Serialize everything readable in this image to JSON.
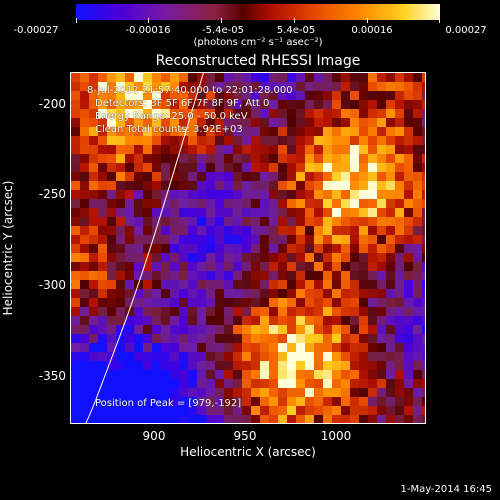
{
  "colorbar": {
    "ticks": [
      "-0.00027",
      "-0.00016",
      "-5.4e-05",
      "5.4e-05",
      "0.00016",
      "0.00027"
    ],
    "unit_label": "(photons cm⁻² s⁻¹ asec⁻²)"
  },
  "plot": {
    "title": "Reconstructed RHESSI Image",
    "info_lines": [
      "8-Jul-2012 21:57:40.000 to 22:01:28.000",
      "Detectors: 3F 5F 6F 7F 8F 9F, Att 0",
      "Energy Range: 25.0 - 50.0 keV",
      "Clean      Total counts: 3.92E+03"
    ],
    "peak_label": "Position of Peak = [979,-192]",
    "xlabel": "Heliocentric X (arcsec)",
    "ylabel": "Heliocentric Y (arcsec)",
    "xticks": [
      "900",
      "950",
      "1000"
    ],
    "yticks": [
      "-200",
      "-250",
      "-300",
      "-350"
    ]
  },
  "timestamp": "1-May-2014 16:45"
}
